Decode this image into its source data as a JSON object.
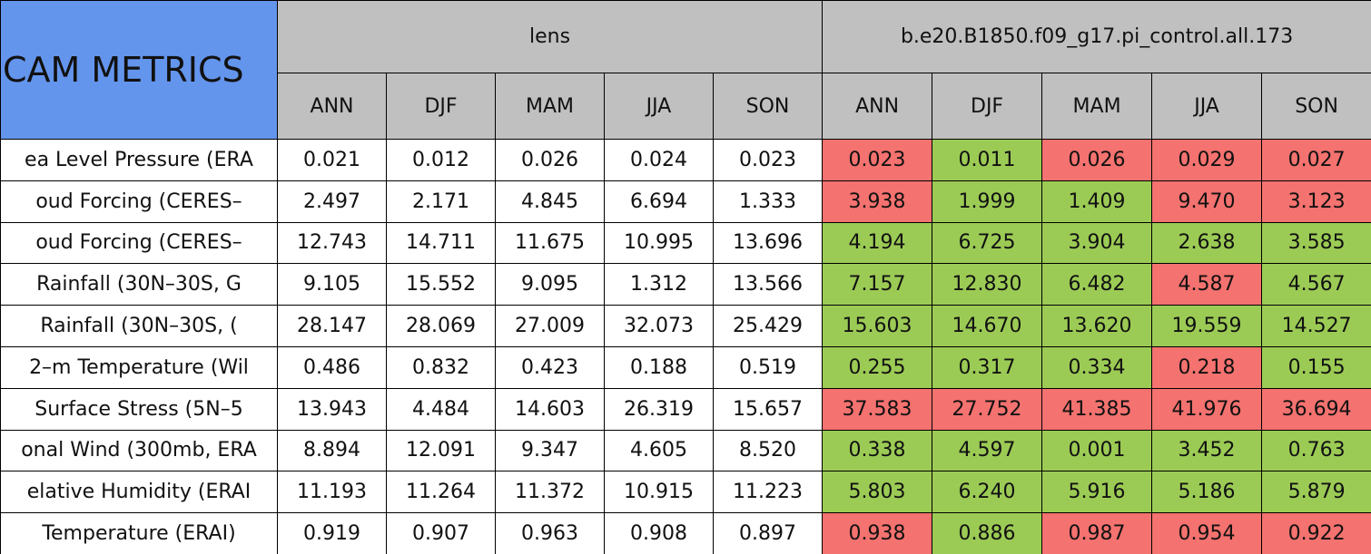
{
  "header": {
    "title": "CAM METRICS"
  },
  "groups": [
    {
      "name": "lens",
      "seasons": [
        "ANN",
        "DJF",
        "MAM",
        "JJA",
        "SON"
      ]
    },
    {
      "name": "b.e20.B1850.f09_g17.pi_control.all.173",
      "seasons": [
        "ANN",
        "DJF",
        "MAM",
        "JJA",
        "SON"
      ]
    }
  ],
  "table": {
    "rows": [
      {
        "label": "ea Level Pressure (ERA",
        "values": [
          "0.021",
          "0.012",
          "0.026",
          "0.024",
          "0.023",
          "0.023",
          "0.011",
          "0.026",
          "0.029",
          "0.027"
        ],
        "colors": [
          "#ffffff",
          "#ffffff",
          "#ffffff",
          "#ffffff",
          "#ffffff",
          "#f4726f",
          "#9ccb55",
          "#f4726f",
          "#f4726f",
          "#f4726f"
        ]
      },
      {
        "label": "oud Forcing (CERES–",
        "values": [
          "2.497",
          "2.171",
          "4.845",
          "6.694",
          "1.333",
          "3.938",
          "1.999",
          "1.409",
          "9.470",
          "3.123"
        ],
        "colors": [
          "#ffffff",
          "#ffffff",
          "#ffffff",
          "#ffffff",
          "#ffffff",
          "#f4726f",
          "#9ccb55",
          "#9ccb55",
          "#f4726f",
          "#f4726f"
        ]
      },
      {
        "label": "oud Forcing (CERES–",
        "values": [
          "12.743",
          "14.711",
          "11.675",
          "10.995",
          "13.696",
          "4.194",
          "6.725",
          "3.904",
          "2.638",
          "3.585"
        ],
        "colors": [
          "#ffffff",
          "#ffffff",
          "#ffffff",
          "#ffffff",
          "#ffffff",
          "#9ccb55",
          "#9ccb55",
          "#9ccb55",
          "#9ccb55",
          "#9ccb55"
        ]
      },
      {
        "label": "Rainfall (30N–30S, G",
        "values": [
          "9.105",
          "15.552",
          "9.095",
          "1.312",
          "13.566",
          "7.157",
          "12.830",
          "6.482",
          "4.587",
          "4.567"
        ],
        "colors": [
          "#ffffff",
          "#ffffff",
          "#ffffff",
          "#ffffff",
          "#ffffff",
          "#9ccb55",
          "#9ccb55",
          "#9ccb55",
          "#f4726f",
          "#9ccb55"
        ]
      },
      {
        "label": "Rainfall (30N–30S, (",
        "values": [
          "28.147",
          "28.069",
          "27.009",
          "32.073",
          "25.429",
          "15.603",
          "14.670",
          "13.620",
          "19.559",
          "14.527"
        ],
        "colors": [
          "#ffffff",
          "#ffffff",
          "#ffffff",
          "#ffffff",
          "#ffffff",
          "#9ccb55",
          "#9ccb55",
          "#9ccb55",
          "#9ccb55",
          "#9ccb55"
        ]
      },
      {
        "label": "2–m Temperature (Wil",
        "values": [
          "0.486",
          "0.832",
          "0.423",
          "0.188",
          "0.519",
          "0.255",
          "0.317",
          "0.334",
          "0.218",
          "0.155"
        ],
        "colors": [
          "#ffffff",
          "#ffffff",
          "#ffffff",
          "#ffffff",
          "#ffffff",
          "#9ccb55",
          "#9ccb55",
          "#9ccb55",
          "#f4726f",
          "#9ccb55"
        ]
      },
      {
        "label": "Surface Stress (5N–5",
        "values": [
          "13.943",
          "4.484",
          "14.603",
          "26.319",
          "15.657",
          "37.583",
          "27.752",
          "41.385",
          "41.976",
          "36.694"
        ],
        "colors": [
          "#ffffff",
          "#ffffff",
          "#ffffff",
          "#ffffff",
          "#ffffff",
          "#f4726f",
          "#f4726f",
          "#f4726f",
          "#f4726f",
          "#f4726f"
        ]
      },
      {
        "label": "onal Wind (300mb, ERA",
        "values": [
          "8.894",
          "12.091",
          "9.347",
          "4.605",
          "8.520",
          "0.338",
          "4.597",
          "0.001",
          "3.452",
          "0.763"
        ],
        "colors": [
          "#ffffff",
          "#ffffff",
          "#ffffff",
          "#ffffff",
          "#ffffff",
          "#9ccb55",
          "#9ccb55",
          "#9ccb55",
          "#9ccb55",
          "#9ccb55"
        ]
      },
      {
        "label": "elative Humidity (ERAI",
        "values": [
          "11.193",
          "11.264",
          "11.372",
          "10.915",
          "11.223",
          "5.803",
          "6.240",
          "5.916",
          "5.186",
          "5.879"
        ],
        "colors": [
          "#ffffff",
          "#ffffff",
          "#ffffff",
          "#ffffff",
          "#ffffff",
          "#9ccb55",
          "#9ccb55",
          "#9ccb55",
          "#9ccb55",
          "#9ccb55"
        ]
      },
      {
        "label": "Temperature (ERAI)",
        "values": [
          "0.919",
          "0.907",
          "0.963",
          "0.908",
          "0.897",
          "0.938",
          "0.886",
          "0.987",
          "0.954",
          "0.922"
        ],
        "colors": [
          "#ffffff",
          "#ffffff",
          "#ffffff",
          "#ffffff",
          "#ffffff",
          "#f4726f",
          "#9ccb55",
          "#f4726f",
          "#f4726f",
          "#f4726f"
        ]
      }
    ]
  }
}
